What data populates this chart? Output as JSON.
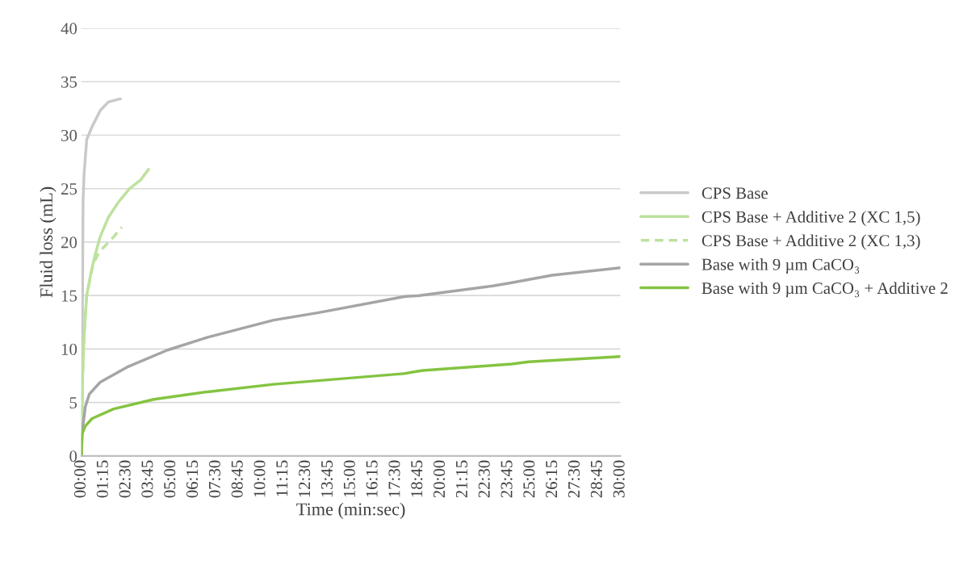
{
  "chart_data": {
    "type": "line",
    "xlabel": "Time (min:sec)",
    "ylabel": "Fluid loss (mL)",
    "xlim": [
      0,
      30
    ],
    "xticks": [
      {
        "value": 0,
        "label": "00:00"
      },
      {
        "value": 1.25,
        "label": "01:15"
      },
      {
        "value": 2.5,
        "label": "02:30"
      },
      {
        "value": 3.75,
        "label": "03:45"
      },
      {
        "value": 5,
        "label": "05:00"
      },
      {
        "value": 6.25,
        "label": "06:15"
      },
      {
        "value": 7.5,
        "label": "07:30"
      },
      {
        "value": 8.75,
        "label": "08:45"
      },
      {
        "value": 10,
        "label": "10:00"
      },
      {
        "value": 11.25,
        "label": "11:15"
      },
      {
        "value": 12.5,
        "label": "12:30"
      },
      {
        "value": 13.75,
        "label": "13:45"
      },
      {
        "value": 15,
        "label": "15:00"
      },
      {
        "value": 16.25,
        "label": "16:15"
      },
      {
        "value": 17.5,
        "label": "17:30"
      },
      {
        "value": 18.75,
        "label": "18:45"
      },
      {
        "value": 20,
        "label": "20:00"
      },
      {
        "value": 21.25,
        "label": "21:15"
      },
      {
        "value": 22.5,
        "label": "22:30"
      },
      {
        "value": 23.75,
        "label": "23:45"
      },
      {
        "value": 25,
        "label": "25:00"
      },
      {
        "value": 26.25,
        "label": "26:15"
      },
      {
        "value": 27.5,
        "label": "27:30"
      },
      {
        "value": 28.75,
        "label": "28:45"
      },
      {
        "value": 30,
        "label": "30:00"
      }
    ],
    "ylim": [
      0,
      40
    ],
    "yticks": [
      0,
      5,
      10,
      15,
      20,
      25,
      30,
      35,
      40
    ],
    "grid": "y",
    "legend": "right",
    "marker": "none",
    "series": [
      {
        "name": "CPS Base",
        "color": "#c9c9c9",
        "line_style": "solid",
        "x": [
          0,
          0.05,
          0.08,
          0.1,
          0.15,
          0.3,
          0.6,
          1.05,
          1.5,
          2.17
        ],
        "values": [
          0,
          10,
          20,
          24,
          26.3,
          29.6,
          30.8,
          32.3,
          33.1,
          33.4
        ]
      },
      {
        "name": "CPS Base + Additive 2 (XC 1,5)",
        "color": "#bde29e",
        "line_style": "solid",
        "x": [
          0,
          0.03,
          0.07,
          0.15,
          0.3,
          0.52,
          0.75,
          1.05,
          1.5,
          2.09,
          2.69,
          3.29,
          3.74
        ],
        "values": [
          0,
          3,
          7.4,
          11.2,
          15,
          17,
          18.7,
          20.5,
          22.3,
          23.8,
          25,
          25.8,
          26.8
        ]
      },
      {
        "name": "CPS Base + Additive 2 (XC 1,3)",
        "color": "#bde29e",
        "line_style": "dashed",
        "x": [
          0,
          0.03,
          0.07,
          0.15,
          0.3,
          0.52,
          0.67,
          0.97,
          1.35,
          1.8,
          2.25
        ],
        "values": [
          0,
          3,
          7.4,
          11.2,
          15,
          16.9,
          18,
          19,
          19.7,
          20.5,
          21.4
        ]
      },
      {
        "name": "Base with 9 µm CaCO₃",
        "color": "#a5a5a5",
        "line_style": "solid",
        "x": [
          0,
          0.07,
          0.22,
          0.45,
          1.05,
          2.54,
          4.79,
          7.03,
          10.7,
          13.2,
          17.96,
          18.8,
          22.9,
          23.95,
          26.2,
          30
        ],
        "values": [
          0,
          2.5,
          4.6,
          5.8,
          6.9,
          8.3,
          9.9,
          11.1,
          12.7,
          13.4,
          14.9,
          15,
          15.9,
          16.2,
          16.9,
          17.6
        ]
      },
      {
        "name": "Base with 9 µm CaCO₃ + Additive 2",
        "color": "#84c441",
        "line_style": "solid",
        "x": [
          0,
          0.03,
          0.22,
          0.6,
          1.8,
          4.04,
          7.03,
          10.7,
          17.96,
          19,
          23.95,
          24.9,
          30
        ],
        "values": [
          0,
          2,
          2.8,
          3.5,
          4.4,
          5.3,
          6,
          6.7,
          7.7,
          8,
          8.6,
          8.8,
          9.3
        ]
      }
    ]
  }
}
